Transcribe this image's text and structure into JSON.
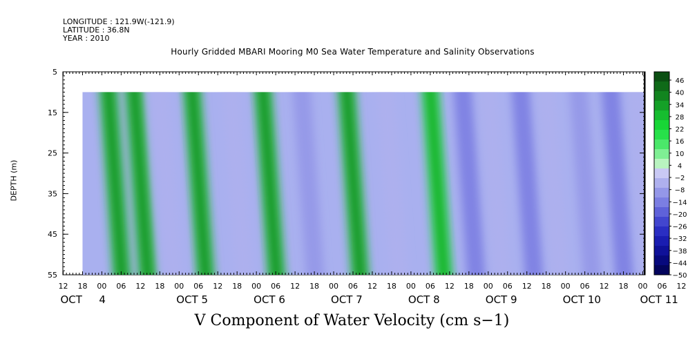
{
  "header": {
    "longitude": "LONGITUDE : 121.9W(-121.9)",
    "latitude": "LATITUDE : 36.8N",
    "year": "YEAR : 2010"
  },
  "chart_data": {
    "type": "heatmap",
    "title": "Hourly Gridded MBARI Mooring M0 Sea Water Temperature and Salinity Observations",
    "xlabel": "V Component of Water Velocity (cm s−1)",
    "ylabel": "DEPTH (m)",
    "x_range_hours": [
      0,
      180
    ],
    "x_data_start_hours": 6,
    "y_range": [
      5,
      55
    ],
    "y_inverted": true,
    "data_depth_range": [
      10,
      55
    ],
    "y_ticks": [
      5,
      15,
      25,
      35,
      45,
      55
    ],
    "x_hour_ticks": [
      "12",
      "18",
      "00",
      "06",
      "12",
      "18",
      "00",
      "06",
      "12",
      "18",
      "00",
      "06",
      "12",
      "18",
      "00",
      "06",
      "12",
      "18",
      "00",
      "06",
      "12",
      "18",
      "00",
      "06",
      "12",
      "18",
      "00",
      "06",
      "12",
      "18",
      "00",
      "06",
      "12"
    ],
    "x_day_labels": [
      {
        "label": "OCT",
        "hour": 0
      },
      {
        "label": "4",
        "hour": 12
      },
      {
        "label": "OCT  5",
        "hour": 36
      },
      {
        "label": "OCT  6",
        "hour": 60
      },
      {
        "label": "OCT  7",
        "hour": 84
      },
      {
        "label": "OCT  8",
        "hour": 108
      },
      {
        "label": "OCT  9",
        "hour": 132
      },
      {
        "label": "OCT 10",
        "hour": 156
      },
      {
        "label": "OCT 11",
        "hour": 180
      }
    ],
    "colorbar": {
      "labels": [
        "46",
        "40",
        "34",
        "28",
        "22",
        "16",
        "10",
        "4",
        "−2",
        "−8",
        "−14",
        "−20",
        "−26",
        "−32",
        "−38",
        "−44",
        "−50"
      ],
      "colors": [
        "#0b4f12",
        "#0f6a18",
        "#12841f",
        "#14a027",
        "#16bd2f",
        "#18d636",
        "#27e14a",
        "#4be76a",
        "#7fef94",
        "#b9f4c0",
        "#c9c9f4",
        "#aeb0ee",
        "#9497e8",
        "#7b7ee2",
        "#5f62d9",
        "#4246cf",
        "#2a2ec3",
        "#1a1db1",
        "#0f1199",
        "#07097d",
        "#03045c"
      ]
    },
    "velocity_bands": [
      {
        "hour": 14,
        "value": 30
      },
      {
        "hour": 22,
        "value": 28
      },
      {
        "hour": 30,
        "value": -8
      },
      {
        "hour": 40,
        "value": 28
      },
      {
        "hour": 52,
        "value": -6
      },
      {
        "hour": 62,
        "value": 30
      },
      {
        "hour": 74,
        "value": -10
      },
      {
        "hour": 88,
        "value": 30
      },
      {
        "hour": 100,
        "value": -8
      },
      {
        "hour": 114,
        "value": 22
      },
      {
        "hour": 124,
        "value": -16
      },
      {
        "hour": 132,
        "value": -8
      },
      {
        "hour": 142,
        "value": -18
      },
      {
        "hour": 150,
        "value": -4
      },
      {
        "hour": 160,
        "value": -10
      },
      {
        "hour": 170,
        "value": -14
      },
      {
        "hour": 178,
        "value": -6
      }
    ]
  }
}
